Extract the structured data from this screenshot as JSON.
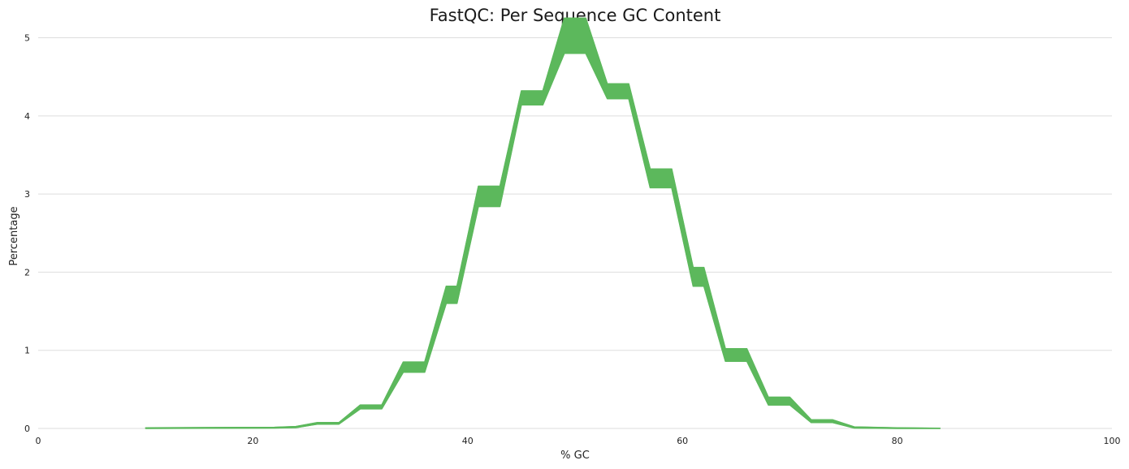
{
  "chart_data": {
    "type": "area",
    "title": "FastQC: Per Sequence GC Content",
    "xlabel": "% GC",
    "ylabel": "Percentage",
    "xlim": [
      0,
      100
    ],
    "ylim": [
      0,
      5.4
    ],
    "x_ticks": [
      "0",
      "20",
      "40",
      "60",
      "80",
      "100"
    ],
    "y_ticks": [
      "0",
      "1",
      "2",
      "3",
      "4",
      "5"
    ],
    "grid": true,
    "legend": "none",
    "color": "#5cb85c",
    "series": [
      {
        "values_low": [
          [
            10,
            0
          ],
          [
            22,
            0.005
          ],
          [
            24,
            0.01
          ],
          [
            26,
            0.055
          ],
          [
            28,
            0.055
          ],
          [
            30,
            0.25
          ],
          [
            32,
            0.25
          ],
          [
            34,
            0.72
          ],
          [
            36,
            0.72
          ],
          [
            38,
            1.6
          ],
          [
            39,
            1.6
          ],
          [
            41,
            2.84
          ],
          [
            43,
            2.84
          ],
          [
            45,
            4.14
          ],
          [
            47,
            4.14
          ],
          [
            49,
            4.8
          ],
          [
            51,
            4.8
          ],
          [
            53,
            4.22
          ],
          [
            55,
            4.22
          ],
          [
            57,
            3.08
          ],
          [
            59,
            3.08
          ],
          [
            61,
            1.82
          ],
          [
            62,
            1.82
          ],
          [
            64,
            0.86
          ],
          [
            66,
            0.86
          ],
          [
            68,
            0.3
          ],
          [
            70,
            0.3
          ],
          [
            72,
            0.075
          ],
          [
            74,
            0.075
          ],
          [
            76,
            0.005
          ],
          [
            80,
            0
          ],
          [
            84,
            0
          ]
        ],
        "values_high": [
          [
            10,
            0.008
          ],
          [
            22,
            0.015
          ],
          [
            24,
            0.025
          ],
          [
            26,
            0.075
          ],
          [
            28,
            0.075
          ],
          [
            30,
            0.3
          ],
          [
            32,
            0.3
          ],
          [
            34,
            0.85
          ],
          [
            36,
            0.85
          ],
          [
            38,
            1.82
          ],
          [
            39,
            1.82
          ],
          [
            41,
            3.1
          ],
          [
            43,
            3.1
          ],
          [
            45,
            4.32
          ],
          [
            47,
            4.32
          ],
          [
            49,
            5.25
          ],
          [
            51,
            5.25
          ],
          [
            53,
            4.41
          ],
          [
            55,
            4.41
          ],
          [
            57,
            3.32
          ],
          [
            59,
            3.32
          ],
          [
            61,
            2.06
          ],
          [
            62,
            2.06
          ],
          [
            64,
            1.02
          ],
          [
            66,
            1.02
          ],
          [
            68,
            0.4
          ],
          [
            70,
            0.4
          ],
          [
            72,
            0.11
          ],
          [
            74,
            0.11
          ],
          [
            76,
            0.02
          ],
          [
            80,
            0.008
          ],
          [
            84,
            0.003
          ]
        ]
      }
    ]
  }
}
